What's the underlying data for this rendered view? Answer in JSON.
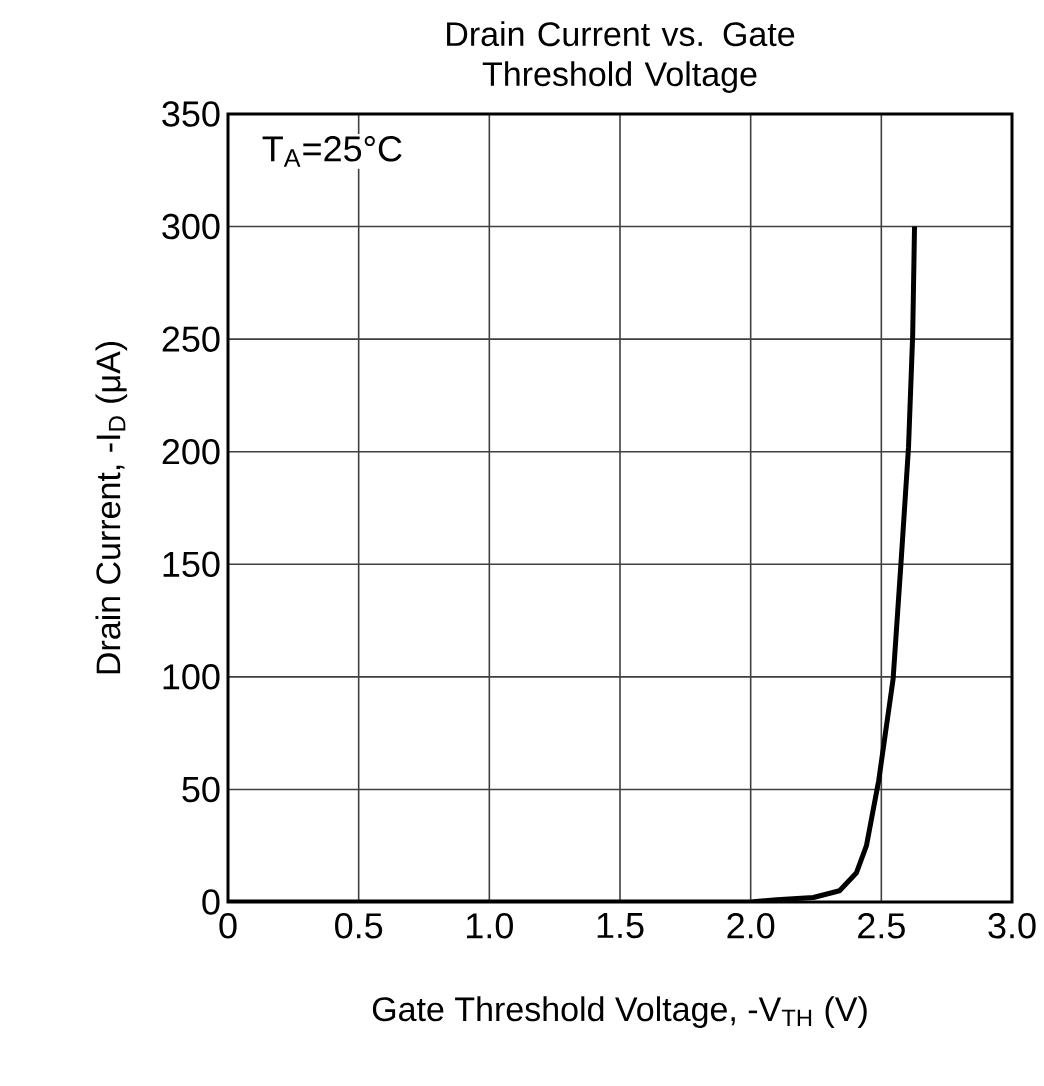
{
  "chart_data": {
    "type": "line",
    "title": "Drain Current vs. Gate Threshold Voltage",
    "xlabel": "Gate Threshold Voltage, -V$_{TH}$ (V)",
    "ylabel": "Drain Current, -I$_{D}$ (μA)",
    "annotations": [
      "T$_{A}$=25°C"
    ],
    "x": [
      0,
      0.5,
      1.0,
      1.5,
      2.0,
      2.1,
      2.24,
      2.34,
      2.405,
      2.443,
      2.49,
      2.545,
      2.576,
      2.604,
      2.62,
      2.627
    ],
    "series": [
      {
        "color": "#000000",
        "values": [
          0,
          0,
          0,
          0,
          0,
          1,
          2,
          5,
          13,
          25,
          54,
          99,
          152,
          202,
          252,
          300
        ]
      }
    ],
    "xlim": [
      0,
      3.0
    ],
    "ylim": [
      0,
      350
    ],
    "xticks": [
      0,
      {
        "value": 0.5,
        "label": "0.5"
      },
      {
        "value": 1.0,
        "label": "1.0"
      },
      {
        "value": 1.5,
        "label": "1.5"
      },
      {
        "value": 2.0,
        "label": "2.0"
      },
      {
        "value": 2.5,
        "label": "2.5"
      },
      {
        "value": 3.0,
        "label": "3.0"
      }
    ],
    "yticks": [
      0,
      50,
      100,
      150,
      200,
      250,
      300,
      350
    ],
    "grid": true,
    "marker": "none",
    "line_style": "solid"
  }
}
